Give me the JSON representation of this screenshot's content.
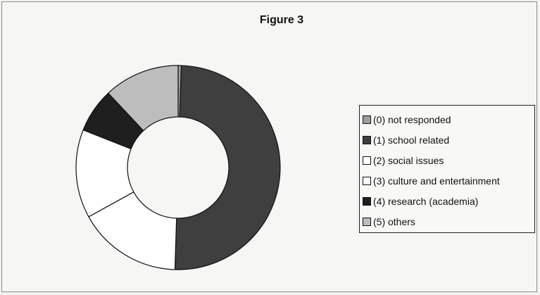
{
  "chart_data": {
    "type": "pie",
    "variant": "donut",
    "title": "Figure 3",
    "legend_position": "right",
    "slices": [
      {
        "label": "(0) not responded",
        "value": 0.5,
        "color": "#9e9e9e"
      },
      {
        "label": "(1) school related",
        "value": 50.0,
        "color": "#3f3f3f"
      },
      {
        "label": "(2) social issues",
        "value": 16.5,
        "color": "#ffffff"
      },
      {
        "label": "(3) culture and entertainment",
        "value": 14.0,
        "color": "#ffffff"
      },
      {
        "label": "(4) research (academia)",
        "value": 7.0,
        "color": "#1f1f1f"
      },
      {
        "label": "(5) others",
        "value": 12.0,
        "color": "#bdbdbd"
      }
    ]
  }
}
